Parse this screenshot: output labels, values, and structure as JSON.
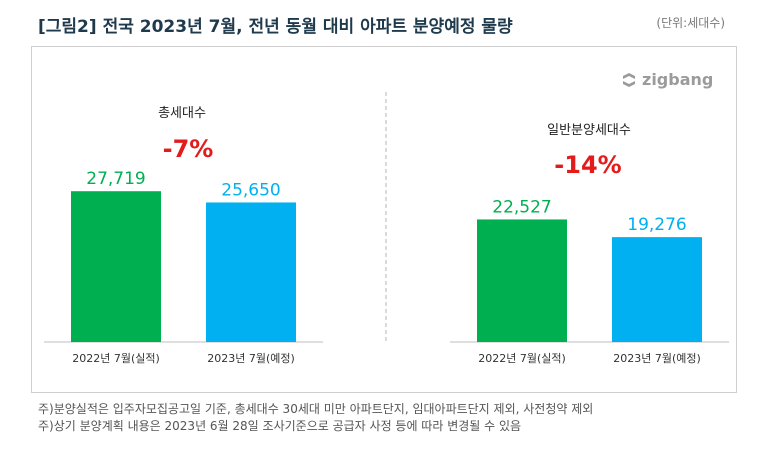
{
  "header": {
    "title": "[그림2] 전국 2023년 7월, 전년 동월 대비 아파트 분양예정 물량",
    "unit": "(단위:세대수)"
  },
  "brand": {
    "logo_text": "zigbang",
    "logo_icon": "zigbang-logo-icon"
  },
  "colors": {
    "bar_2022": "#00b050",
    "bar_2023": "#00b0f0",
    "change": "#e31b1b",
    "title": "#1f3a4d"
  },
  "chart_data": [
    {
      "type": "bar",
      "title": "총세대수",
      "change_label": "-7%",
      "categories": [
        "2022년 7월(실적)",
        "2023년 7월(예정)"
      ],
      "values": [
        27719,
        25650
      ],
      "value_labels": [
        "27,719",
        "25,650"
      ],
      "ylim": [
        0,
        50000
      ],
      "grid": false
    },
    {
      "type": "bar",
      "title": "일반분양세대수",
      "change_label": "-14%",
      "categories": [
        "2022년 7월(실적)",
        "2023년 7월(예정)"
      ],
      "values": [
        22527,
        19276
      ],
      "value_labels": [
        "22,527",
        "19,276"
      ],
      "ylim": [
        0,
        50000
      ],
      "grid": false
    }
  ],
  "footnotes": [
    "주)분양실적은 입주자모집공고일 기준, 총세대수 30세대 미만 아파트단지, 임대아파트단지 제외, 사전청약 제외",
    "주)상기 분양계획 내용은 2023년 6월 28일 조사기준으로 공급자 사정 등에 따라 변경될 수 있음"
  ]
}
